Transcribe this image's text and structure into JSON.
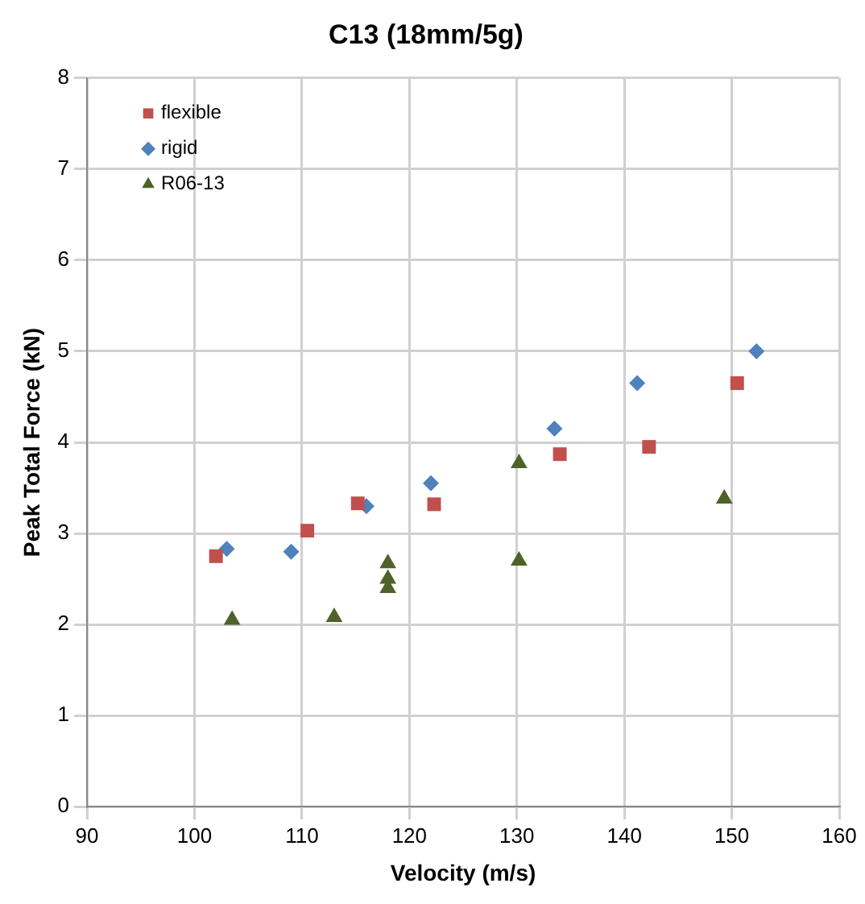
{
  "chart_data": {
    "type": "scatter",
    "title": "C13 (18mm/5g)",
    "xlabel": "Velocity (m/s)",
    "ylabel": "Peak Total Force (kN)",
    "xlim": [
      90,
      160
    ],
    "xticks": [
      90,
      100,
      110,
      120,
      130,
      140,
      150,
      160
    ],
    "ylim": [
      0,
      8
    ],
    "yticks": [
      0,
      1,
      2,
      3,
      4,
      5,
      6,
      7,
      8
    ],
    "grid": true,
    "legend": "top left",
    "series": [
      {
        "name": "flexible",
        "color": "#c0504d",
        "marker": "square",
        "x": [
          102,
          110.5,
          115.2,
          122.3,
          134,
          142.3,
          150.5
        ],
        "values": [
          2.75,
          3.03,
          3.33,
          3.32,
          3.87,
          3.95,
          4.65
        ]
      },
      {
        "name": "rigid",
        "color": "#4f81bd",
        "marker": "diamond",
        "x": [
          103,
          109,
          116,
          122,
          133.5,
          141.2,
          152.3
        ],
        "values": [
          2.83,
          2.8,
          3.3,
          3.55,
          4.15,
          4.65,
          5.0
        ]
      },
      {
        "name": "R06-13",
        "color": "#4f6228",
        "marker": "triangle",
        "x": [
          103.5,
          113,
          118,
          118,
          118,
          130.2,
          130.2,
          149.3
        ],
        "values": [
          2.05,
          2.08,
          2.67,
          2.5,
          2.4,
          3.77,
          2.7,
          3.38
        ]
      }
    ]
  }
}
